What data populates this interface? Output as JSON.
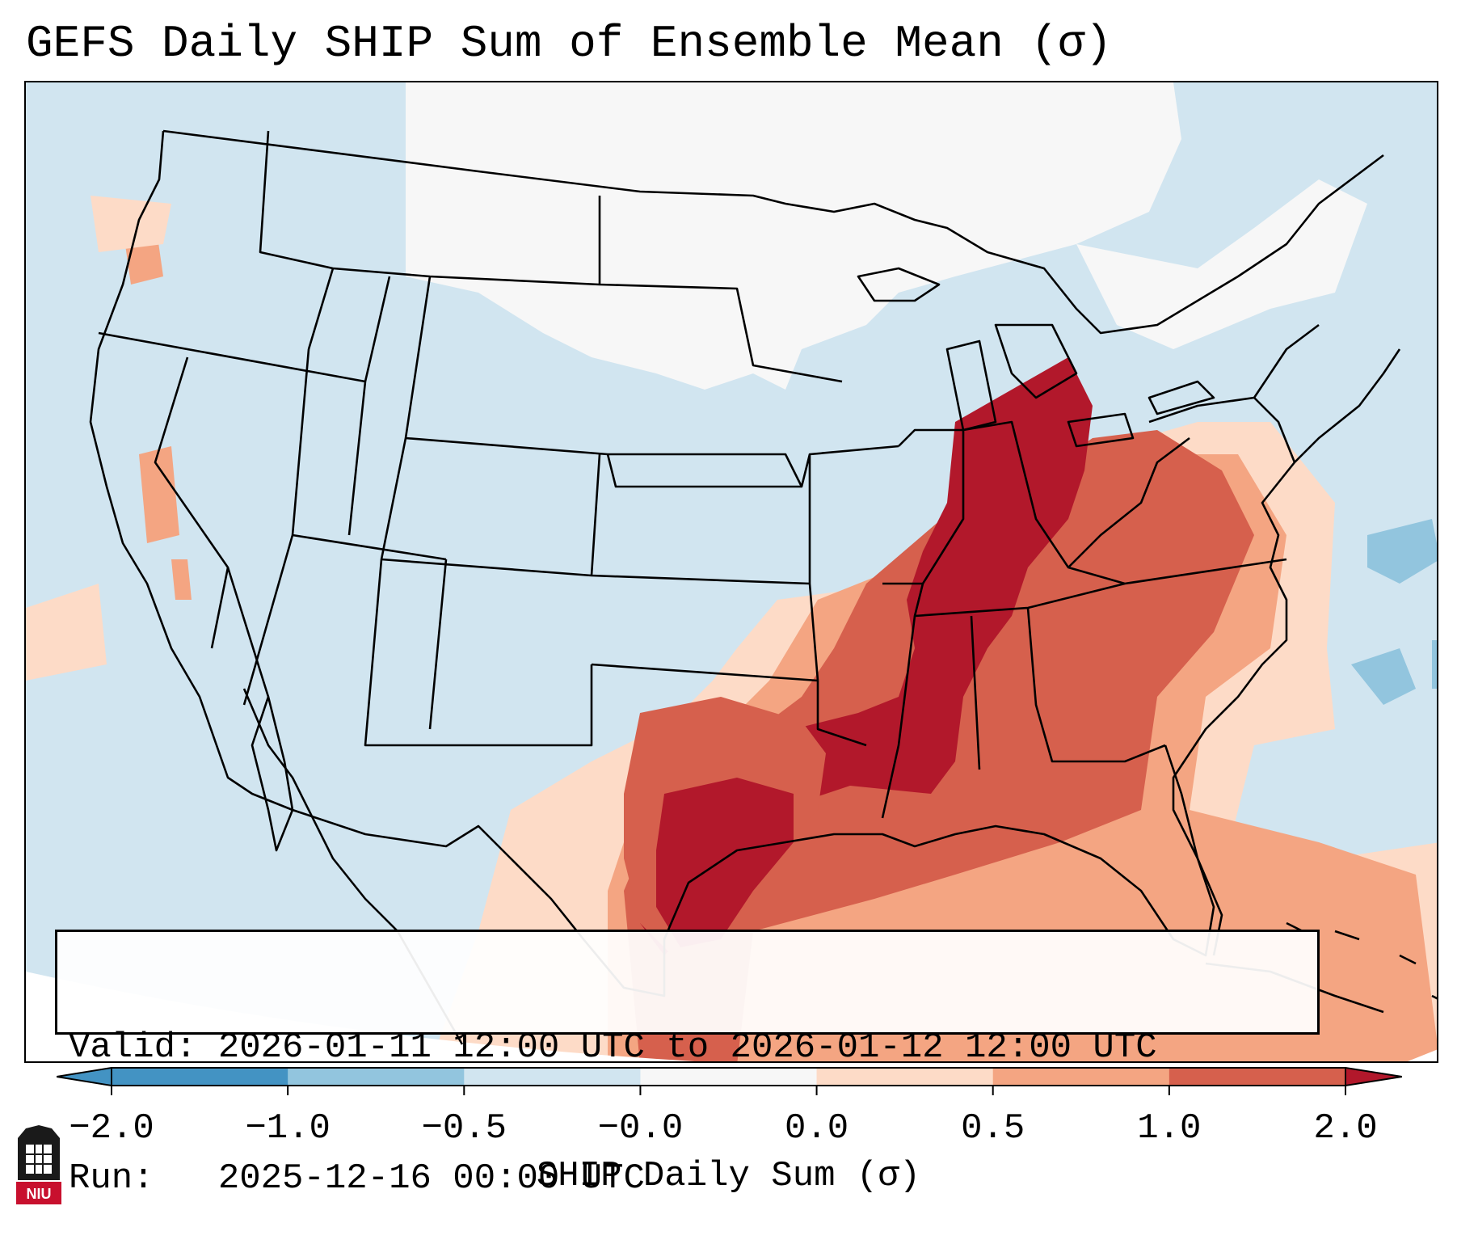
{
  "title": "GEFS Daily SHIP Sum of Ensemble Mean (σ)",
  "valid_label": "Valid:",
  "valid_value": "2026-01-11 12:00 UTC to 2026-01-12 12:00 UTC",
  "run_label": "Run:",
  "run_value": "2025-12-16 00:00 UTC",
  "colorbar": {
    "label": "SHIP Daily Sum (σ)",
    "ticks": [
      "−2.0",
      "−1.0",
      "−0.5",
      "−0.0",
      "0.0",
      "0.5",
      "1.0",
      "2.0"
    ],
    "colors": [
      "#4393c3",
      "#92c5de",
      "#d1e5f0",
      "#f7f7f7",
      "#fddbc7",
      "#f4a582",
      "#d6604d",
      "#b2182b"
    ],
    "extend": "both"
  },
  "chart_data": {
    "type": "heatmap",
    "title": "GEFS Daily SHIP Sum of Ensemble Mean (σ)",
    "variable": "SHIP Daily Sum (σ)",
    "levels": [
      -2.0,
      -1.0,
      -0.5,
      -0.0,
      0.0,
      0.5,
      1.0,
      2.0
    ],
    "regions": [
      {
        "name": "Western and central US",
        "approx_value": -0.25
      },
      {
        "name": "Northern Plains / Upper Midwest",
        "approx_value": 0.0
      },
      {
        "name": "Ohio and Tennessee Valleys",
        "approx_value": 1.5
      },
      {
        "name": "Lower Mississippi Valley / Deep South",
        "approx_value": 1.5
      },
      {
        "name": "East Texas",
        "approx_value": 1.5
      },
      {
        "name": "Carolinas and Georgia",
        "approx_value": 1.0
      },
      {
        "name": "Gulf of Mexico",
        "approx_value": 0.75
      },
      {
        "name": "Western Atlantic offshore",
        "approx_value": -0.75
      }
    ]
  },
  "logo": {
    "text": "NIU"
  }
}
